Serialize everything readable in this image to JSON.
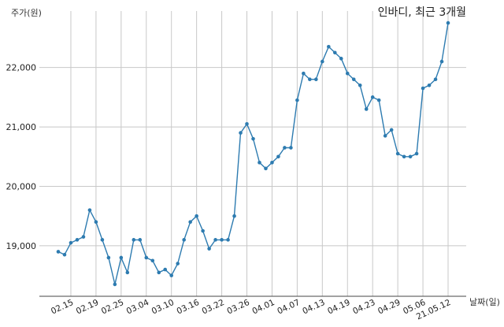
{
  "chart_data": {
    "type": "line",
    "title": "인바디, 최근 3개월",
    "ylabel": "주가(원)",
    "xlabel": "날짜(일)",
    "ylim": [
      18150,
      22950
    ],
    "yticks": [
      19000,
      20000,
      21000,
      22000
    ],
    "ytick_labels": [
      "19,000",
      "20,000",
      "21,000",
      "22,000"
    ],
    "xtick_labels": [
      "02.15",
      "02.19",
      "02.25",
      "03.04",
      "03.10",
      "03.16",
      "03.22",
      "03.26",
      "04.01",
      "04.07",
      "04.13",
      "04.19",
      "04.23",
      "04.29",
      "05.06",
      "21.05.12"
    ],
    "xtick_index": [
      2,
      6,
      10,
      14,
      18,
      22,
      26,
      30,
      34,
      38,
      42,
      46,
      50,
      54,
      58,
      62
    ],
    "grid": true,
    "colors": {
      "series": "#2d7bb0",
      "grid": "#c8c8c8"
    },
    "series": [
      {
        "values": [
          18900,
          18850,
          19050,
          19100,
          19150,
          19600,
          19400,
          19100,
          18800,
          18350,
          18800,
          18550,
          19100,
          19100,
          18800,
          18750,
          18550,
          18600,
          18500,
          18700,
          19100,
          19400,
          19500,
          19250,
          18950,
          19100,
          19100,
          19100,
          19500,
          20900,
          21050,
          20800,
          20400,
          20300,
          20400,
          20500,
          20650,
          20650,
          21450,
          21900,
          21800,
          21800,
          22100,
          22350,
          22250,
          22150,
          21900,
          21800,
          21700,
          21300,
          21500,
          21450,
          20850,
          20950,
          20550,
          20500,
          20500,
          20550,
          21650,
          21700,
          21800,
          22100,
          22750
        ]
      }
    ]
  }
}
